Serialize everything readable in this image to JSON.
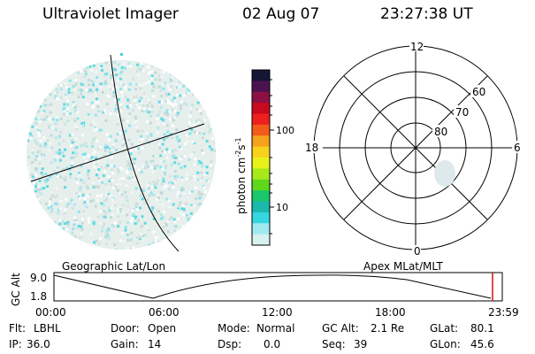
{
  "header": {
    "title": "Ultraviolet Imager",
    "date": "02 Aug 07",
    "time": "23:27:38 UT"
  },
  "colorbar": {
    "unit_label": "photon cm",
    "unit_exp1": "-2",
    "unit_s": "s",
    "unit_exp2": "-1",
    "tick_labels": [
      "100",
      "10"
    ],
    "colors": [
      "#151535",
      "#4b1250",
      "#8c1046",
      "#c80a1f",
      "#ee1f1f",
      "#f25b1a",
      "#f5a11a",
      "#f6d21a",
      "#e6f21a",
      "#a6ea1a",
      "#5ed81a",
      "#1ac86b",
      "#1ab8ad",
      "#34d7e0",
      "#9feaf0",
      "#d8f0f0"
    ]
  },
  "panels": {
    "left_caption": "Geographic Lat/Lon",
    "right_caption": "Apex MLat/MLT"
  },
  "polar": {
    "mlt_labels": {
      "top": "12",
      "left": "18",
      "right": "6",
      "bottom": "0"
    },
    "lat_labels": [
      "60",
      "70",
      "80"
    ]
  },
  "altitude_plot": {
    "y_axis_label": "GC Alt",
    "y_ticks": [
      "9.0",
      "1.8"
    ],
    "x_ticks": [
      "00:00",
      "06:00",
      "12:00",
      "18:00",
      "23:59"
    ],
    "marker_color": "#d01010"
  },
  "status": {
    "flt_label": "Flt:",
    "flt_value": "LBHL",
    "ip_label": "IP:",
    "ip_value": "36.0",
    "door_label": "Door:",
    "door_value": "Open",
    "gain_label": "Gain:",
    "gain_value": "14",
    "mode_label": "Mode:",
    "mode_value": "Normal",
    "dsp_label": "Dsp:",
    "dsp_value": "0.0",
    "gcalt_label": "GC Alt:",
    "gcalt_value": "2.1 Re",
    "seq_label": "Seq:",
    "seq_value": "39",
    "glat_label": "GLat:",
    "glat_value": "80.1",
    "glon_label": "GLon:",
    "glon_value": "45.6"
  }
}
